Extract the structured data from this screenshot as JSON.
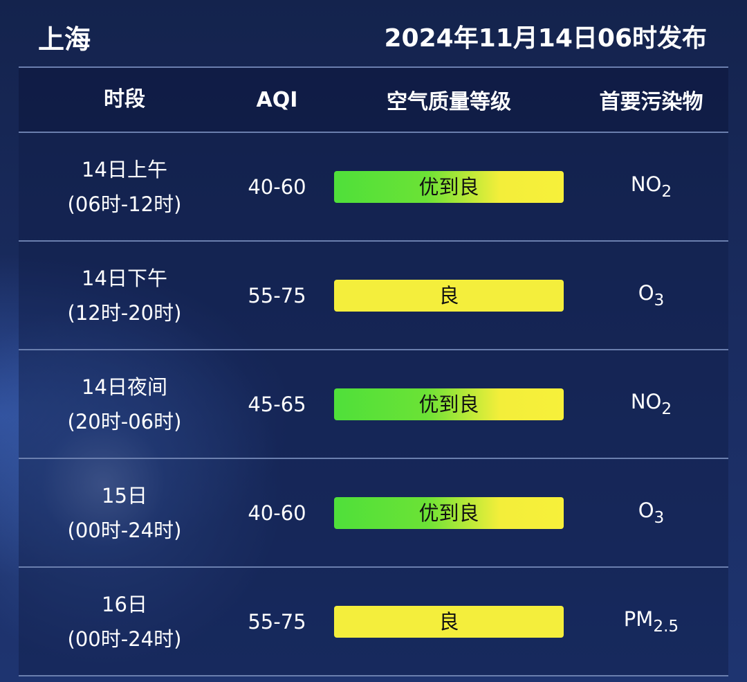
{
  "header": {
    "city": "上海",
    "published": "2024年11月14日06时发布"
  },
  "columns": [
    "时段",
    "AQI",
    "空气质量等级",
    "首要污染物"
  ],
  "colors": {
    "good_to_moderate": [
      "#4fe03a",
      "#f7f03a"
    ],
    "moderate": "#f4ee3c"
  },
  "rows": [
    {
      "period": "14日上午",
      "range": "(06时-12时)",
      "aqi": "40-60",
      "level": "优到良",
      "level_type": "good_to_moderate",
      "pollutant": "NO",
      "pollutant_sub": "2"
    },
    {
      "period": "14日下午",
      "range": "(12时-20时)",
      "aqi": "55-75",
      "level": "良",
      "level_type": "moderate",
      "pollutant": "O",
      "pollutant_sub": "3"
    },
    {
      "period": "14日夜间",
      "range": "(20时-06时)",
      "aqi": "45-65",
      "level": "优到良",
      "level_type": "good_to_moderate",
      "pollutant": "NO",
      "pollutant_sub": "2"
    },
    {
      "period": "15日",
      "range": "(00时-24时)",
      "aqi": "40-60",
      "level": "优到良",
      "level_type": "good_to_moderate",
      "pollutant": "O",
      "pollutant_sub": "3"
    },
    {
      "period": "16日",
      "range": "(00时-24时)",
      "aqi": "55-75",
      "level": "良",
      "level_type": "moderate",
      "pollutant": "PM",
      "pollutant_sub": "2.5"
    }
  ]
}
